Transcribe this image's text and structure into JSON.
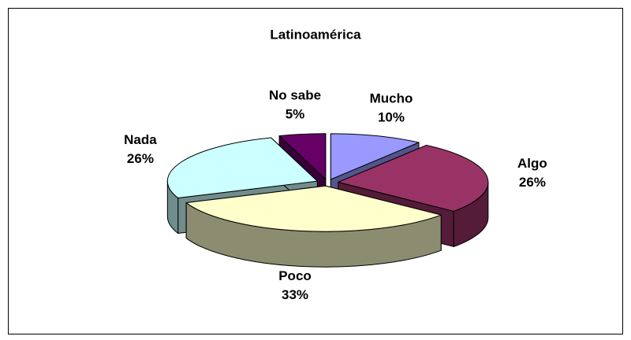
{
  "chart_data": {
    "type": "pie",
    "title": "Latinoamérica",
    "categories": [
      "Mucho",
      "Algo",
      "Poco",
      "Nada",
      "No sabe"
    ],
    "values": [
      10,
      26,
      33,
      26,
      5
    ],
    "value_labels": [
      "10%",
      "26%",
      "33%",
      "26%",
      "5%"
    ],
    "colors": [
      "#9999ff",
      "#993366",
      "#ffffcc",
      "#ccffff",
      "#660066"
    ]
  }
}
